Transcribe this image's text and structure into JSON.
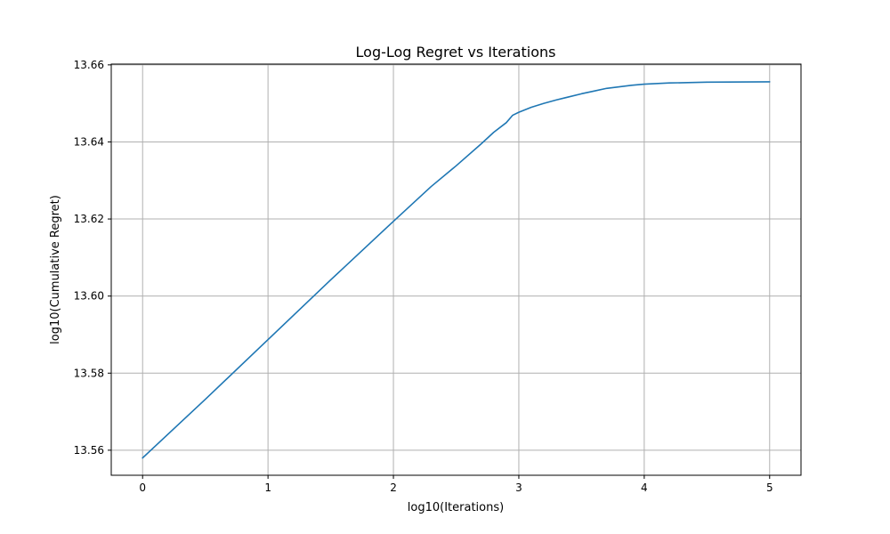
{
  "chart_data": {
    "type": "line",
    "title": "Log-Log Regret vs Iterations",
    "xlabel": "log10(Iterations)",
    "ylabel": "log10(Cumulative Regret)",
    "xlim": [
      -0.25,
      5.25
    ],
    "ylim": [
      13.5535,
      13.6602
    ],
    "xticks": [
      0,
      1,
      2,
      3,
      4,
      5
    ],
    "xtick_labels": [
      "0",
      "1",
      "2",
      "3",
      "4",
      "5"
    ],
    "yticks": [
      13.56,
      13.58,
      13.6,
      13.62,
      13.64,
      13.66
    ],
    "ytick_labels": [
      "13.56",
      "13.58",
      "13.60",
      "13.62",
      "13.64",
      "13.66"
    ],
    "grid": true,
    "series": [
      {
        "color": "#1f77b4",
        "x": [
          0,
          0.5,
          1.0,
          1.5,
          2.0,
          2.3,
          2.5,
          2.7,
          2.8,
          2.9,
          2.95,
          3.0,
          3.1,
          3.2,
          3.3,
          3.4,
          3.5,
          3.6,
          3.7,
          3.8,
          3.9,
          4.0,
          4.2,
          4.5,
          5.0
        ],
        "y": [
          13.558,
          13.5732,
          13.5887,
          13.6042,
          13.6194,
          13.6284,
          13.6338,
          13.6395,
          13.6425,
          13.645,
          13.6469,
          13.6477,
          13.649,
          13.65,
          13.6509,
          13.6517,
          13.6525,
          13.6532,
          13.6539,
          13.6543,
          13.6547,
          13.655,
          13.6553,
          13.6555,
          13.6556
        ]
      }
    ]
  }
}
